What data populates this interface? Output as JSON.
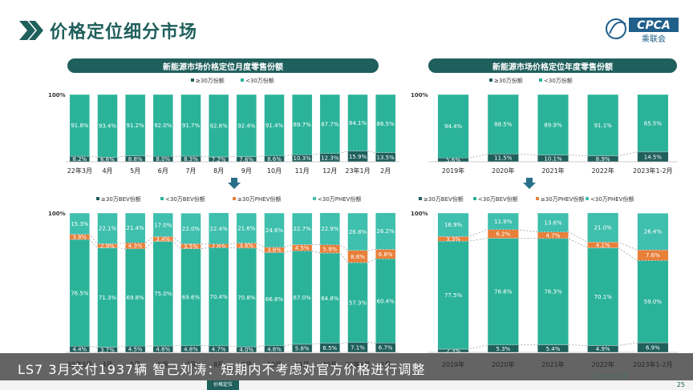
{
  "page": {
    "title": "价格定位细分市场",
    "logo_text": "CPCA",
    "logo_sub": "乘联会",
    "source_note": "深度分析报告",
    "page_number": "25"
  },
  "caption": "LS7 3月交付1937辆 智己刘涛：短期内不考虑对官方价格进行调整",
  "bottom_nav": {
    "items": [
      "",
      "",
      "",
      "",
      "价格定位",
      ""
    ],
    "active_index": 4
  },
  "colors": {
    "dark_teal": "#1f5f5c",
    "teal": "#2bb39a",
    "orange": "#e8803a",
    "light_teal": "#3fbfae",
    "arrow": "#2a6f88"
  },
  "chart_data": [
    {
      "id": "monthly-top",
      "type": "bar",
      "stacked": true,
      "title": "新能源市场价格定位月度零售份额",
      "y_top_label": "100%",
      "categories": [
        "22年3月",
        "4月",
        "5月",
        "6月",
        "7月",
        "8月",
        "9月",
        "10月",
        "11月",
        "12月",
        "23年1月",
        "2月"
      ],
      "series": [
        {
          "name": "≥30万份额",
          "color": "#1f5f5c",
          "values": [
            8.2,
            6.6,
            8.8,
            8.0,
            8.3,
            7.2,
            7.6,
            8.6,
            10.3,
            12.3,
            15.9,
            13.5
          ],
          "labels": [
            "8.2%",
            "6.6%",
            "8.8%",
            "8.0%",
            "8.3%",
            "7.2%",
            "7.6%",
            "8.6%",
            "10.3%",
            "12.3%",
            "15.9%",
            "13.5%"
          ]
        },
        {
          "name": "<30万份额",
          "color": "#2bb39a",
          "values": [
            91.8,
            93.4,
            91.2,
            92.0,
            91.7,
            92.8,
            92.4,
            91.4,
            89.7,
            87.7,
            84.1,
            86.5
          ],
          "labels": [
            "91.8%",
            "93.4%",
            "91.2%",
            "92.0%",
            "91.7%",
            "92.8%",
            "92.4%",
            "91.4%",
            "89.7%",
            "87.7%",
            "84.1%",
            "86.5%"
          ]
        }
      ]
    },
    {
      "id": "annual-top",
      "type": "bar",
      "stacked": true,
      "title": "新能源市场价格定位年度零售份额",
      "y_top_label": "100%",
      "categories": [
        "2019年",
        "2020年",
        "2021年",
        "2022年",
        "2023年1-2月"
      ],
      "series": [
        {
          "name": "≥30万份额",
          "color": "#1f5f5c",
          "values": [
            5.6,
            11.5,
            10.1,
            8.9,
            14.5
          ],
          "labels": [
            "5.6%",
            "11.5%",
            "10.1%",
            "8.9%",
            "14.5%"
          ]
        },
        {
          "name": "<30万份额",
          "color": "#2bb39a",
          "values": [
            94.4,
            88.5,
            89.9,
            91.1,
            85.5
          ],
          "labels": [
            "94.4%",
            "88.5%",
            "89.9%",
            "91.1%",
            "85.5%"
          ]
        }
      ]
    },
    {
      "id": "monthly-bottom",
      "type": "bar",
      "stacked": true,
      "title": "",
      "y_top_label": "100%",
      "categories": [
        "22年3月",
        "4月",
        "5月",
        "6月",
        "7月",
        "8月",
        "9月",
        "10月",
        "11月",
        "12月",
        "23年1月",
        "2月"
      ],
      "series": [
        {
          "name": "≥30万BEV份额",
          "color": "#1f5f5c",
          "values": [
            4.4,
            3.7,
            4.5,
            4.6,
            4.8,
            4.7,
            4.0,
            4.8,
            5.8,
            6.5,
            7.1,
            6.7
          ],
          "labels": [
            "4.4%",
            "3.7%",
            "4.5%",
            "4.6%",
            "4.8%",
            "4.7%",
            "4.0%",
            "4.8%",
            "5.8%",
            "6.5%",
            "7.1%",
            "6.7%"
          ]
        },
        {
          "name": "<30万BEV份额",
          "color": "#2bb39a",
          "values": [
            76.5,
            71.3,
            69.8,
            75.0,
            69.6,
            70.4,
            70.8,
            66.8,
            67.0,
            64.8,
            57.3,
            60.4
          ],
          "labels": [
            "76.5%",
            "71.3%",
            "69.8%",
            "75.0%",
            "69.6%",
            "70.4%",
            "70.8%",
            "66.8%",
            "67.0%",
            "64.8%",
            "57.3%",
            "60.4%"
          ]
        },
        {
          "name": "≥30万PHEV份额",
          "color": "#e8803a",
          "values": [
            3.8,
            2.9,
            4.3,
            3.4,
            3.5,
            2.6,
            3.6,
            3.8,
            4.5,
            5.9,
            8.8,
            6.8
          ],
          "labels": [
            "3.8%",
            "2.9%",
            "4.3%",
            "3.4%",
            "3.5%",
            "2.6%",
            "3.6%",
            "3.8%",
            "4.5%",
            "5.9%",
            "8.8%",
            "6.8%"
          ]
        },
        {
          "name": "<30万PHEV份额",
          "color": "#3fbfae",
          "values": [
            15.3,
            22.1,
            21.4,
            17.0,
            22.0,
            22.4,
            21.6,
            24.6,
            22.7,
            22.9,
            26.8,
            26.2
          ],
          "labels": [
            "15.3%",
            "22.1%",
            "21.4%",
            "17.0%",
            "22.0%",
            "22.4%",
            "21.6%",
            "24.6%",
            "22.7%",
            "22.9%",
            "26.8%",
            "26.2%"
          ]
        }
      ]
    },
    {
      "id": "annual-bottom",
      "type": "bar",
      "stacked": true,
      "title": "",
      "y_top_label": "100%",
      "categories": [
        "2019年",
        "2020年",
        "2021年",
        "2022年",
        "2023年1-2月"
      ],
      "series": [
        {
          "name": "≥30万BEV份额",
          "color": "#1f5f5c",
          "values": [
            2.3,
            5.3,
            5.4,
            4.9,
            6.9
          ],
          "labels": [
            "2.3%",
            "5.3%",
            "5.4%",
            "4.9%",
            "6.9%"
          ]
        },
        {
          "name": "<30万BEV份额",
          "color": "#2bb39a",
          "values": [
            77.5,
            76.6,
            76.3,
            70.1,
            59.0
          ],
          "labels": [
            "77.5%",
            "76.6%",
            "76.3%",
            "70.1%",
            "59.0%"
          ]
        },
        {
          "name": "≥30万PHEV份额",
          "color": "#e8803a",
          "values": [
            3.3,
            6.2,
            4.7,
            4.1,
            7.6
          ],
          "labels": [
            "3.3%",
            "6.2%",
            "4.7%",
            "4.1%",
            "7.6%"
          ]
        },
        {
          "name": "<30万PHEV份额",
          "color": "#3fbfae",
          "values": [
            16.9,
            11.9,
            13.6,
            21.0,
            26.4
          ],
          "labels": [
            "16.9%",
            "11.9%",
            "13.6%",
            "21.0%",
            "26.4%"
          ]
        }
      ]
    }
  ]
}
